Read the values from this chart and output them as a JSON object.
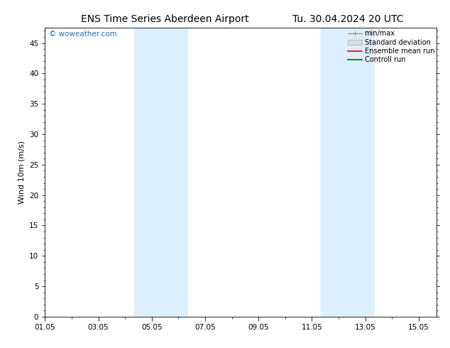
{
  "title_left": "ENS Time Series Aberdeen Airport",
  "title_right": "Tu. 30.04.2024 20 UTC",
  "ylabel": "Wind 10m (m/s)",
  "xlim": [
    0,
    14.67
  ],
  "ylim": [
    0,
    47.5
  ],
  "yticks": [
    0,
    5,
    10,
    15,
    20,
    25,
    30,
    35,
    40,
    45
  ],
  "xtick_positions": [
    0,
    2,
    4,
    6,
    8,
    10,
    12,
    14
  ],
  "xtick_labels": [
    "01.05",
    "03.05",
    "05.05",
    "07.05",
    "09.05",
    "11.05",
    "13.05",
    "15.05"
  ],
  "shaded_bands": [
    {
      "xmin": 3.33,
      "xmax": 5.33
    },
    {
      "xmin": 10.33,
      "xmax": 12.33
    }
  ],
  "band_color": "#ddeeff",
  "background_color": "#ffffff",
  "watermark_text": "© woweather.com",
  "watermark_color": "#1a6fbe",
  "legend_items": [
    {
      "label": "min/max",
      "color": "#999999",
      "style": "minmax"
    },
    {
      "label": "Standard deviation",
      "color": "#cccccc",
      "style": "band"
    },
    {
      "label": "Ensemble mean run",
      "color": "#dd0000",
      "style": "line"
    },
    {
      "label": "Controll run",
      "color": "#006600",
      "style": "line"
    }
  ],
  "font_size_title": 10,
  "font_size_ylabel": 8,
  "font_size_ticks": 7.5,
  "font_size_legend": 7,
  "font_size_watermark": 7.5
}
